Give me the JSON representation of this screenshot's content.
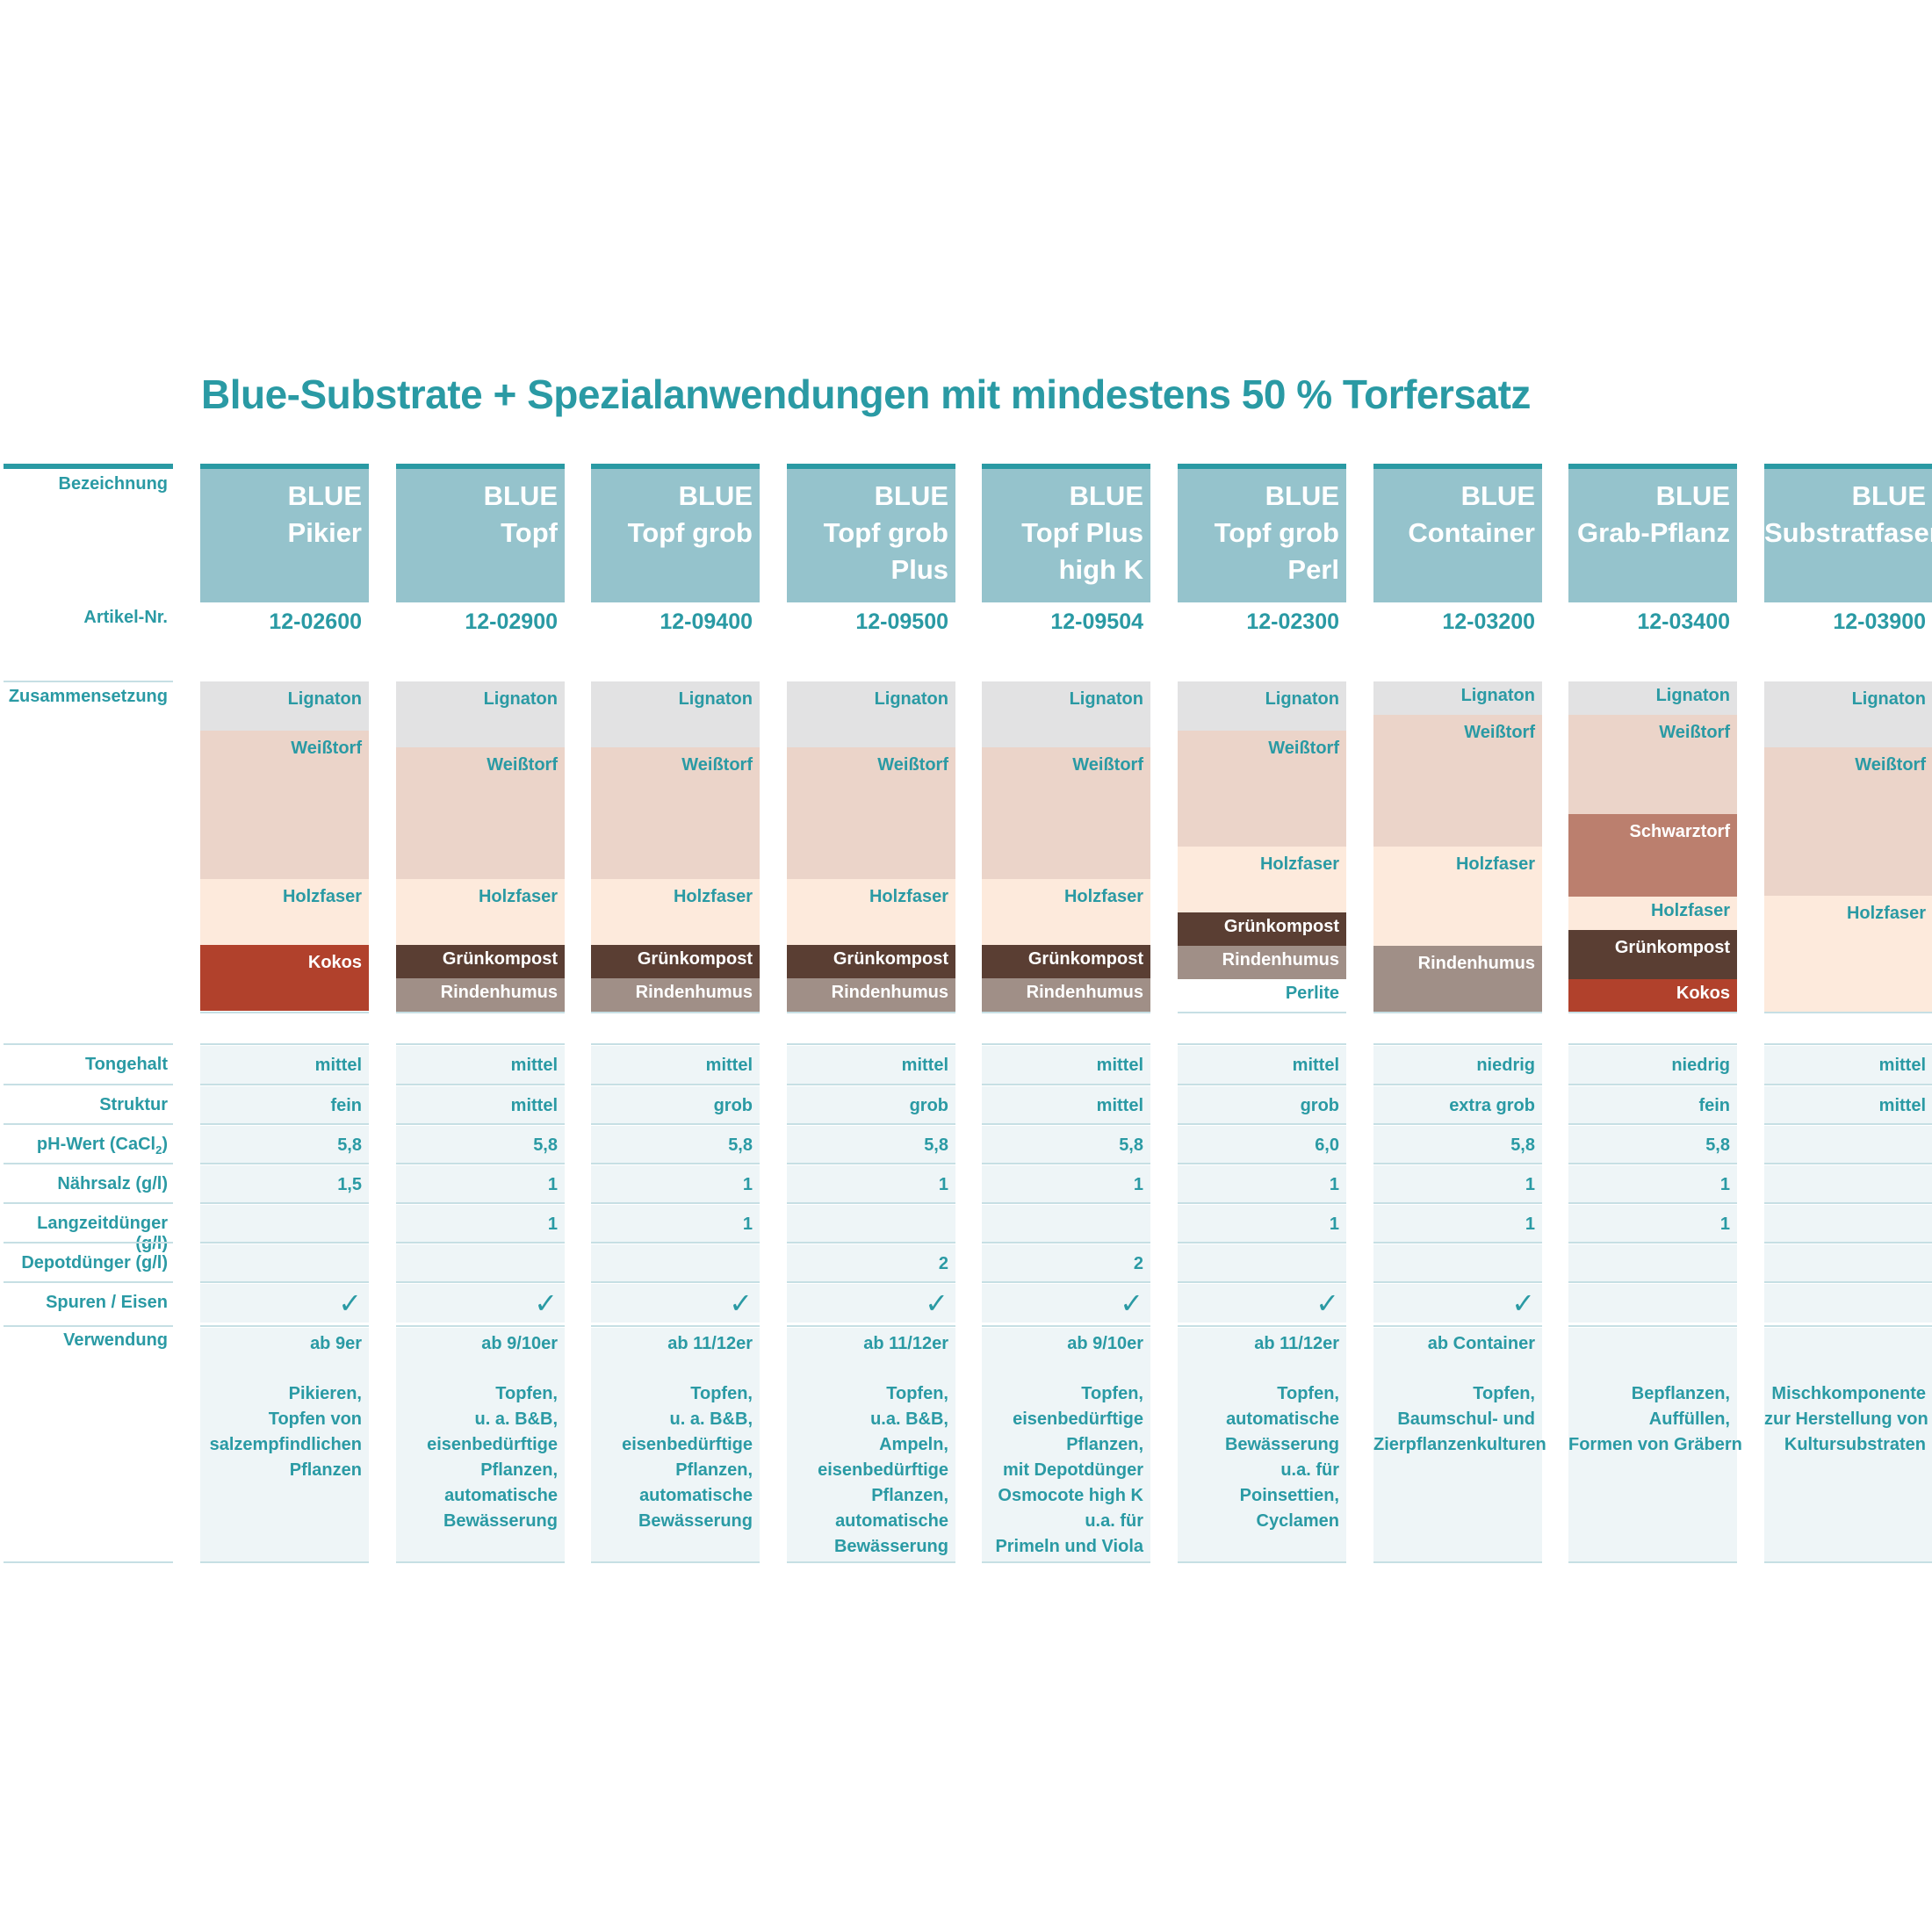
{
  "title": "Blue-Substrate + Spezialanwendungen mit mindestens 50 % Torfersatz",
  "labels": {
    "bezeichnung": "Bezeichnung",
    "artikel": "Artikel-Nr.",
    "zusammensetzung": "Zusammensetzung",
    "tongehalt": "Tongehalt",
    "struktur": "Struktur",
    "ph_wert": "pH-Wert  (CaCl",
    "ph_sub": "2",
    "ph_end": ")",
    "naehrsalz": "Nährsalz (g/l)",
    "langzeit": "Langzeitdünger (g/l)",
    "depot": "Depotdünger (g/l)",
    "spuren": "Spuren / Eisen",
    "verwendung": "Verwendung"
  },
  "colors": {
    "accent": "#2a9aa4",
    "header_bg": "#95c3cc",
    "Lignaton": "#e2e2e3",
    "Weißtorf": "#ebd4c9",
    "Holzfaser": "#fdeadc",
    "Kokos": "#b1412c",
    "Grünkompost": "#5a3e33",
    "Rindenhumus": "#a08f87",
    "Schwarztorf": "#bb7f6e",
    "Perlite": "#ffffff"
  },
  "check_symbol": "✓",
  "products": [
    {
      "name": [
        "BLUE",
        "Pikier"
      ],
      "article": "12-02600",
      "composition": [
        {
          "name": "Lignaton",
          "share": 15
        },
        {
          "name": "Weißtorf",
          "share": 45
        },
        {
          "name": "Holzfaser",
          "share": 20
        },
        {
          "name": "Kokos",
          "share": 20
        }
      ],
      "tongehalt": "mittel",
      "struktur": "fein",
      "ph": "5,8",
      "naehrsalz": "1,5",
      "langzeit": "",
      "depot": "",
      "spuren": true,
      "verwendung_head": "ab 9er",
      "verwendung": [
        "Pikieren,",
        "Topfen von",
        "salzempfindlichen",
        "Pflanzen"
      ]
    },
    {
      "name": [
        "BLUE",
        "Topf"
      ],
      "article": "12-02900",
      "composition": [
        {
          "name": "Lignaton",
          "share": 20
        },
        {
          "name": "Weißtorf",
          "share": 40
        },
        {
          "name": "Holzfaser",
          "share": 20
        },
        {
          "name": "Grünkompost",
          "share": 10
        },
        {
          "name": "Rindenhumus",
          "share": 10
        }
      ],
      "tongehalt": "mittel",
      "struktur": "mittel",
      "ph": "5,8",
      "naehrsalz": "1",
      "langzeit": "1",
      "depot": "",
      "spuren": true,
      "verwendung_head": "ab 9/10er",
      "verwendung": [
        "Topfen,",
        "u. a. B&B,",
        "eisenbedürftige",
        "Pflanzen,",
        "automatische",
        "Bewässerung"
      ]
    },
    {
      "name": [
        "BLUE",
        "Topf grob"
      ],
      "article": "12-09400",
      "composition": [
        {
          "name": "Lignaton",
          "share": 20
        },
        {
          "name": "Weißtorf",
          "share": 40
        },
        {
          "name": "Holzfaser",
          "share": 20
        },
        {
          "name": "Grünkompost",
          "share": 10
        },
        {
          "name": "Rindenhumus",
          "share": 10
        }
      ],
      "tongehalt": "mittel",
      "struktur": "grob",
      "ph": "5,8",
      "naehrsalz": "1",
      "langzeit": "1",
      "depot": "",
      "spuren": true,
      "verwendung_head": "ab 11/12er",
      "verwendung": [
        "Topfen,",
        "u. a. B&B,",
        "eisenbedürftige",
        "Pflanzen,",
        "automatische",
        "Bewässerung"
      ]
    },
    {
      "name": [
        "BLUE",
        "Topf grob",
        "Plus"
      ],
      "article": "12-09500",
      "composition": [
        {
          "name": "Lignaton",
          "share": 20
        },
        {
          "name": "Weißtorf",
          "share": 40
        },
        {
          "name": "Holzfaser",
          "share": 20
        },
        {
          "name": "Grünkompost",
          "share": 10
        },
        {
          "name": "Rindenhumus",
          "share": 10
        }
      ],
      "tongehalt": "mittel",
      "struktur": "grob",
      "ph": "5,8",
      "naehrsalz": "1",
      "langzeit": "",
      "depot": "2",
      "spuren": true,
      "verwendung_head": "ab 11/12er",
      "verwendung": [
        "Topfen,",
        "u.a. B&B,",
        "Ampeln,",
        "eisenbedürftige",
        "Pflanzen,",
        "automatische",
        "Bewässerung"
      ]
    },
    {
      "name": [
        "BLUE",
        "Topf Plus",
        "high K"
      ],
      "article": "12-09504",
      "composition": [
        {
          "name": "Lignaton",
          "share": 20
        },
        {
          "name": "Weißtorf",
          "share": 40
        },
        {
          "name": "Holzfaser",
          "share": 20
        },
        {
          "name": "Grünkompost",
          "share": 10
        },
        {
          "name": "Rindenhumus",
          "share": 10
        }
      ],
      "tongehalt": "mittel",
      "struktur": "mittel",
      "ph": "5,8",
      "naehrsalz": "1",
      "langzeit": "",
      "depot": "2",
      "spuren": true,
      "verwendung_head": "ab 9/10er",
      "verwendung": [
        "Topfen,",
        "eisenbedürftige",
        "Pflanzen,",
        "mit Depotdünger",
        "Osmocote high K",
        "u.a. für",
        "Primeln und Viola"
      ]
    },
    {
      "name": [
        "BLUE",
        "Topf grob",
        "Perl"
      ],
      "article": "12-02300",
      "composition": [
        {
          "name": "Lignaton",
          "share": 15
        },
        {
          "name": "Weißtorf",
          "share": 35
        },
        {
          "name": "Holzfaser",
          "share": 20
        },
        {
          "name": "Grünkompost",
          "share": 10
        },
        {
          "name": "Rindenhumus",
          "share": 10
        },
        {
          "name": "Perlite",
          "share": 10
        }
      ],
      "tongehalt": "mittel",
      "struktur": "grob",
      "ph": "6,0",
      "naehrsalz": "1",
      "langzeit": "1",
      "depot": "",
      "spuren": true,
      "verwendung_head": "ab 11/12er",
      "verwendung": [
        "Topfen,",
        "automatische",
        "Bewässerung",
        "u.a. für",
        "Poinsettien,",
        "Cyclamen"
      ]
    },
    {
      "name": [
        "BLUE",
        "Container"
      ],
      "article": "12-03200",
      "composition": [
        {
          "name": "Lignaton",
          "share": 10
        },
        {
          "name": "Weißtorf",
          "share": 40
        },
        {
          "name": "Holzfaser",
          "share": 30
        },
        {
          "name": "Rindenhumus",
          "share": 20
        }
      ],
      "tongehalt": "niedrig",
      "struktur": "extra grob",
      "ph": "5,8",
      "naehrsalz": "1",
      "langzeit": "1",
      "depot": "",
      "spuren": true,
      "verwendung_head": "ab Container",
      "verwendung": [
        "Topfen,",
        "Baumschul- und",
        "Zierpflanzenkulturen"
      ]
    },
    {
      "name": [
        "BLUE",
        "Grab-Pflanz"
      ],
      "article": "12-03400",
      "composition": [
        {
          "name": "Lignaton",
          "share": 10
        },
        {
          "name": "Weißtorf",
          "share": 30
        },
        {
          "name": "Schwarztorf",
          "share": 25
        },
        {
          "name": "Holzfaser",
          "share": 10
        },
        {
          "name": "Grünkompost",
          "share": 15
        },
        {
          "name": "Kokos",
          "share": 10
        }
      ],
      "tongehalt": "niedrig",
      "struktur": "fein",
      "ph": "5,8",
      "naehrsalz": "1",
      "langzeit": "1",
      "depot": "",
      "spuren": false,
      "verwendung_head": "",
      "verwendung": [
        "Bepflanzen,",
        "Auffüllen,",
        "Formen von Gräbern"
      ]
    },
    {
      "name": [
        "BLUE",
        "Substratfaser"
      ],
      "article": "12-03900",
      "composition": [
        {
          "name": "Lignaton",
          "share": 20
        },
        {
          "name": "Weißtorf",
          "share": 45
        },
        {
          "name": "Holzfaser",
          "share": 35
        }
      ],
      "tongehalt": "mittel",
      "struktur": "mittel",
      "ph": "",
      "naehrsalz": "",
      "langzeit": "",
      "depot": "",
      "spuren": false,
      "verwendung_head": "",
      "verwendung": [
        "Mischkomponente",
        "zur Herstellung von",
        "Kultursubstraten"
      ]
    }
  ]
}
